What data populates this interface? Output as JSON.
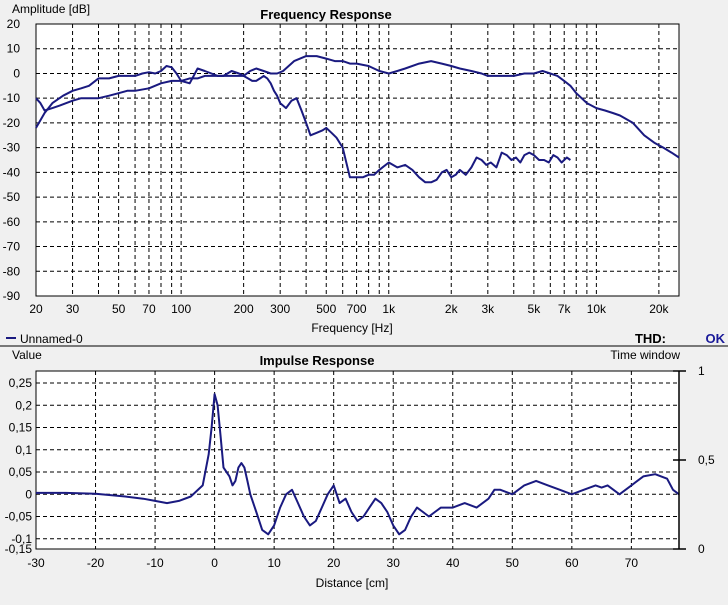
{
  "chart_data": [
    {
      "type": "line",
      "title": "Frequency Response",
      "xlabel": "Frequency [Hz]",
      "ylabel": "Amplitude [dB]",
      "xscale": "log",
      "xlim": [
        20,
        25000
      ],
      "ylim": [
        -90,
        20
      ],
      "grid": true,
      "x_tick_labels": [
        "20",
        "30",
        "50",
        "70",
        "100",
        "200",
        "300",
        "500",
        "700",
        "1k",
        "2k",
        "3k",
        "5k",
        "7k",
        "10k",
        "20k"
      ],
      "x_tick_values": [
        20,
        30,
        50,
        70,
        100,
        200,
        300,
        500,
        700,
        1000,
        2000,
        3000,
        5000,
        7000,
        10000,
        20000
      ],
      "y_tick_labels": [
        "20",
        "10",
        "0",
        "-10",
        "-20",
        "-30",
        "-40",
        "-50",
        "-60",
        "-70",
        "-80",
        "-90"
      ],
      "y_tick_values": [
        20,
        10,
        0,
        -10,
        -20,
        -30,
        -40,
        -50,
        -60,
        -70,
        -80,
        -90
      ],
      "legend_label": "Unnamed-0",
      "thd_label": "THD:",
      "thd_value": "OK",
      "line_color": "#1a1a80",
      "thd_color": "#1a1a99",
      "series": [
        {
          "x": [
            20,
            22,
            24,
            27,
            30,
            33,
            36,
            40,
            45,
            50,
            55,
            60,
            65,
            70,
            75,
            80,
            85,
            90,
            95,
            100,
            110,
            120,
            130,
            140,
            150,
            160,
            175,
            190,
            200,
            215,
            230,
            250,
            270,
            290,
            310,
            350,
            400,
            450,
            500,
            550,
            600,
            650,
            700,
            800,
            900,
            1000,
            1100,
            1200,
            1400,
            1600,
            1800,
            2000,
            2200,
            2500,
            2800,
            3000,
            3300,
            3600,
            4000,
            4500,
            5000,
            5500,
            6000,
            6500,
            7000,
            7500,
            8000,
            9000,
            10000,
            11000,
            12000,
            13000,
            15000,
            17000,
            19000,
            21000,
            23000,
            25000
          ],
          "y": [
            -22,
            -16,
            -12,
            -9,
            -7,
            -6,
            -5,
            -2,
            -2,
            -1,
            -1,
            -1,
            0,
            0.5,
            0,
            1,
            3,
            2.5,
            0,
            -3,
            -4,
            2,
            1,
            0,
            -1,
            -1,
            1,
            0,
            -1,
            1,
            2,
            1,
            0,
            0,
            1,
            5,
            7,
            7,
            6,
            5,
            5,
            4,
            4,
            3,
            1,
            0,
            1,
            2,
            4,
            5,
            4,
            3,
            2,
            1,
            0,
            -1,
            -1,
            -1,
            -1,
            0,
            0,
            1,
            0,
            -1,
            -3,
            -5,
            -8,
            -12,
            -14,
            -15,
            -16,
            -17,
            -20,
            -25,
            -28,
            -30,
            -32,
            -34
          ]
        },
        {
          "x": [
            20,
            21,
            22,
            24,
            26,
            28,
            30,
            33,
            36,
            40,
            45,
            50,
            55,
            60,
            70,
            80,
            90,
            100,
            110,
            120,
            130,
            140,
            150,
            160,
            170,
            180,
            190,
            200,
            210,
            220,
            230,
            240,
            250,
            260,
            270,
            280,
            290,
            300,
            320,
            340,
            360,
            380,
            400,
            420,
            450,
            480,
            500,
            530,
            560,
            600,
            650,
            700,
            750,
            800,
            850,
            900,
            1000,
            1100,
            1200,
            1300,
            1400,
            1500,
            1600,
            1700,
            1800,
            1900,
            2000,
            2100,
            2200,
            2350,
            2500,
            2650,
            2800,
            2950,
            3100,
            3300,
            3500,
            3700,
            3900,
            4100,
            4300,
            4500,
            4750,
            5000,
            5300,
            5600,
            5900,
            6200,
            6500,
            6800,
            7200,
            7500
          ],
          "y": [
            -10,
            -12,
            -15,
            -14,
            -13,
            -12,
            -11,
            -10,
            -10,
            -10,
            -9,
            -8,
            -7,
            -7,
            -6,
            -4,
            -3,
            -3,
            -2,
            -2,
            -1,
            -1,
            -1,
            -1,
            -1,
            -1,
            -1,
            -1,
            -2,
            -3,
            -3,
            -2,
            -1,
            -2,
            -4,
            -7,
            -9,
            -12,
            -14,
            -11,
            -10,
            -15,
            -20,
            -25,
            -24,
            -23,
            -22,
            -24,
            -26,
            -30,
            -42,
            -42,
            -42,
            -41,
            -41,
            -39,
            -36,
            -38,
            -37,
            -39,
            -42,
            -44,
            -44,
            -43,
            -40,
            -39,
            -42,
            -41,
            -39,
            -41,
            -38,
            -34,
            -35,
            -37,
            -36,
            -38,
            -32,
            -33,
            -35,
            -34,
            -36,
            -33,
            -32,
            -33,
            -35,
            -35,
            -36,
            -33,
            -34,
            -36,
            -34,
            -35
          ]
        }
      ]
    },
    {
      "type": "line",
      "title": "Impulse Response",
      "xlabel": "Distance [cm]",
      "ylabel": "Value",
      "xlim": [
        -30,
        78
      ],
      "ylim": [
        -0.15,
        0.25
      ],
      "grid": true,
      "x_tick_labels": [
        "-30",
        "-20",
        "-10",
        "0",
        "10",
        "20",
        "30",
        "40",
        "50",
        "60",
        "70"
      ],
      "x_tick_values": [
        -30,
        -20,
        -10,
        0,
        10,
        20,
        30,
        40,
        50,
        60,
        70
      ],
      "y_tick_labels": [
        "0,25",
        "0,2",
        "0,15",
        "0,1",
        "0,05",
        "0",
        "-0,05",
        "-0,1",
        "-0,15"
      ],
      "y_tick_values": [
        0.25,
        0.2,
        0.15,
        0.1,
        0.05,
        0,
        -0.05,
        -0.1,
        -0.15
      ],
      "time_window_label": "Time window",
      "time_window_ticks": [
        "1",
        "0,5",
        "0"
      ],
      "series": [
        {
          "x": [
            -30,
            -25,
            -20,
            -15,
            -12,
            -10,
            -8,
            -6,
            -4,
            -2,
            -1,
            -0.5,
            0,
            0.5,
            1,
            1.5,
            2,
            2.5,
            3,
            3.5,
            4,
            4.5,
            5,
            5.5,
            6,
            7,
            8,
            9,
            10,
            11,
            12,
            13,
            14,
            15,
            16,
            17,
            18,
            19,
            20,
            21,
            22,
            23,
            24,
            25,
            26,
            27,
            28,
            29,
            30,
            31,
            32,
            33,
            34,
            35,
            36,
            37,
            38,
            40,
            42,
            44,
            46,
            47,
            48,
            50,
            52,
            54,
            56,
            58,
            60,
            62,
            64,
            65,
            66,
            68,
            70,
            72,
            74,
            76,
            77,
            78
          ],
          "y": [
            0.003,
            0.003,
            0.001,
            -0.005,
            -0.01,
            -0.015,
            -0.02,
            -0.015,
            -0.005,
            0.02,
            0.09,
            0.15,
            0.225,
            0.2,
            0.13,
            0.06,
            0.05,
            0.04,
            0.02,
            0.03,
            0.06,
            0.07,
            0.06,
            0.03,
            0,
            -0.04,
            -0.08,
            -0.09,
            -0.07,
            -0.03,
            0,
            0.01,
            -0.02,
            -0.05,
            -0.07,
            -0.06,
            -0.03,
            0,
            0.02,
            -0.02,
            -0.01,
            -0.04,
            -0.06,
            -0.05,
            -0.03,
            -0.01,
            -0.02,
            -0.04,
            -0.07,
            -0.09,
            -0.08,
            -0.05,
            -0.03,
            -0.04,
            -0.05,
            -0.04,
            -0.03,
            -0.03,
            -0.02,
            -0.03,
            -0.01,
            0.01,
            0.01,
            0,
            0.02,
            0.03,
            0.02,
            0.01,
            0,
            0.01,
            0.02,
            0.015,
            0.02,
            0,
            0.02,
            0.04,
            0.045,
            0.035,
            0.01,
            0
          ]
        }
      ]
    }
  ]
}
